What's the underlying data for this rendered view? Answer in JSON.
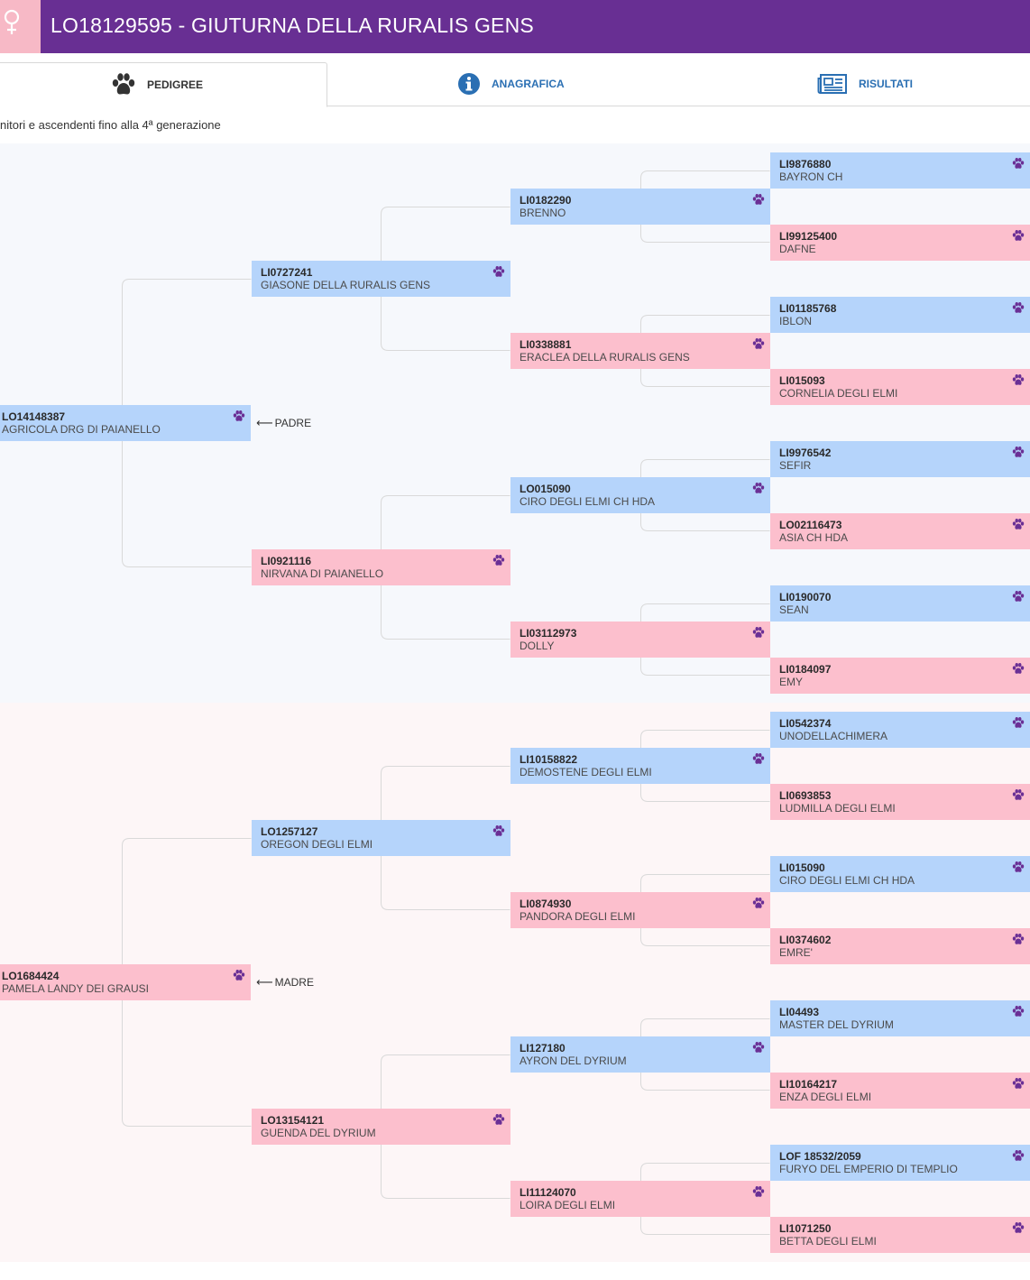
{
  "header": {
    "title": "LO18129595 - GIUTURNA DELLA RURALIS GENS",
    "gender_icon": "female-icon",
    "accent_color": "#682f93",
    "gender_color": "#f7b9c6"
  },
  "tabs": [
    {
      "label": "PEDIGREE",
      "icon": "paw-icon",
      "active": true
    },
    {
      "label": "ANAGRAFICA",
      "icon": "info-icon",
      "active": false
    },
    {
      "label": "RISULTATI",
      "icon": "newspaper-icon",
      "active": false
    }
  ],
  "subtitle": "nitori e ascendenti fino alla 4ª generazione",
  "colors": {
    "male": "#b5d4fb",
    "female": "#fcbfcd",
    "paw": "#6a2f95"
  },
  "pedigree": {
    "padre_label": "PADRE",
    "madre_label": "MADRE",
    "sire": {
      "code": "LO14148387",
      "name": "AGRICOLA DRG DI PAIANELLO",
      "sex": "m"
    },
    "dam": {
      "code": "LO1684424",
      "name": "PAMELA LANDY DEI GRAUSI",
      "sex": "f"
    },
    "g2": [
      {
        "code": "LI0727241",
        "name": "GIASONE DELLA RURALIS GENS",
        "sex": "m"
      },
      {
        "code": "LI0921116",
        "name": "NIRVANA DI PAIANELLO",
        "sex": "f"
      },
      {
        "code": "LO1257127",
        "name": "OREGON DEGLI ELMI",
        "sex": "m"
      },
      {
        "code": "LO13154121",
        "name": "GUENDA DEL DYRIUM",
        "sex": "f"
      }
    ],
    "g3": [
      {
        "code": "LI0182290",
        "name": "BRENNO",
        "sex": "m"
      },
      {
        "code": "LI0338881",
        "name": "ERACLEA DELLA RURALIS GENS",
        "sex": "f"
      },
      {
        "code": "LO015090",
        "name": "CIRO DEGLI ELMI CH HDA",
        "sex": "m"
      },
      {
        "code": "LI03112973",
        "name": "DOLLY",
        "sex": "f"
      },
      {
        "code": "LI10158822",
        "name": "DEMOSTENE DEGLI ELMI",
        "sex": "m"
      },
      {
        "code": "LI0874930",
        "name": "PANDORA DEGLI ELMI",
        "sex": "f"
      },
      {
        "code": "LI127180",
        "name": "AYRON DEL DYRIUM",
        "sex": "m"
      },
      {
        "code": "LI11124070",
        "name": "LOIRA DEGLI ELMI",
        "sex": "f"
      }
    ],
    "g4": [
      {
        "code": "LI9876880",
        "name": "BAYRON CH",
        "sex": "m"
      },
      {
        "code": "LI99125400",
        "name": "DAFNE",
        "sex": "f"
      },
      {
        "code": "LI01185768",
        "name": "IBLON",
        "sex": "m"
      },
      {
        "code": "LI015093",
        "name": "CORNELIA DEGLI ELMI",
        "sex": "f"
      },
      {
        "code": "LI9976542",
        "name": "SEFIR",
        "sex": "m"
      },
      {
        "code": "LO02116473",
        "name": "ASIA CH HDA",
        "sex": "f"
      },
      {
        "code": "LI0190070",
        "name": "SEAN",
        "sex": "m"
      },
      {
        "code": "LI0184097",
        "name": "EMY",
        "sex": "f"
      },
      {
        "code": "LI0542374",
        "name": "UNODELLACHIMERA",
        "sex": "m"
      },
      {
        "code": "LI0693853",
        "name": "LUDMILLA DEGLI ELMI",
        "sex": "f"
      },
      {
        "code": "LI015090",
        "name": "CIRO DEGLI ELMI CH HDA",
        "sex": "m"
      },
      {
        "code": "LI0374602",
        "name": "EMRE'",
        "sex": "f"
      },
      {
        "code": "LI04493",
        "name": "MASTER DEL DYRIUM",
        "sex": "m"
      },
      {
        "code": "LI10164217",
        "name": "ENZA DEGLI ELMI",
        "sex": "f"
      },
      {
        "code": "LOF 18532/2059",
        "name": "FURYO DEL EMPERIO DI TEMPLIO",
        "sex": "m"
      },
      {
        "code": "LI1071250",
        "name": "BETTA DEGLI ELMI",
        "sex": "f"
      }
    ]
  }
}
